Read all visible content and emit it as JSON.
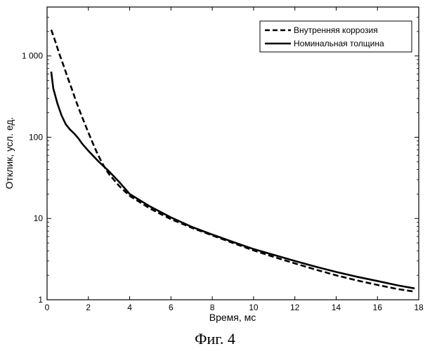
{
  "chart_data": {
    "type": "line",
    "title": "",
    "xlabel": "Время, мс",
    "ylabel": "Отклик, усл. ед.",
    "xlim": [
      0,
      18
    ],
    "ylim": [
      1,
      4000
    ],
    "yscale": "log",
    "grid": false,
    "legend_position": "top-right",
    "x_ticks": [
      0,
      2,
      4,
      6,
      8,
      10,
      12,
      14,
      16,
      18
    ],
    "x_tick_labels": [
      "0",
      "2",
      "4",
      "6",
      "8",
      "10",
      "12",
      "14",
      "16",
      "18"
    ],
    "y_ticks": [
      1,
      10,
      100,
      1000
    ],
    "y_tick_labels": [
      "1",
      "10",
      "100",
      "1 000"
    ],
    "series": [
      {
        "name": "Внутренняя коррозия",
        "style": "dashed",
        "color": "#000000",
        "x": [
          0.2,
          0.4,
          0.6,
          0.8,
          1.0,
          1.2,
          1.4,
          1.6,
          1.8,
          2.0,
          2.2,
          2.4,
          2.6,
          2.8,
          3.0,
          3.5,
          4.0,
          5.0,
          6.0,
          7.0,
          8.0,
          9.0,
          10.0,
          11.0,
          12.0,
          13.0,
          14.0,
          15.0,
          16.0,
          17.0,
          17.8
        ],
        "y": [
          2100,
          1500,
          1050,
          760,
          540,
          390,
          280,
          205,
          152,
          114,
          86,
          66,
          52,
          42,
          35,
          25,
          19,
          13.2,
          9.8,
          7.7,
          6.2,
          5.0,
          4.05,
          3.35,
          2.8,
          2.35,
          2.0,
          1.73,
          1.52,
          1.35,
          1.26
        ]
      },
      {
        "name": "Номинальная толщина",
        "style": "solid",
        "color": "#000000",
        "x": [
          0.2,
          0.3,
          0.5,
          0.7,
          0.9,
          1.1,
          1.3,
          1.5,
          1.7,
          2.0,
          2.5,
          3.0,
          3.5,
          4.0,
          5.0,
          6.0,
          7.0,
          8.0,
          9.0,
          10.0,
          11.0,
          12.0,
          13.0,
          14.0,
          15.0,
          16.0,
          17.0,
          17.8
        ],
        "y": [
          640,
          400,
          260,
          185,
          145,
          125,
          112,
          98,
          83,
          68,
          50,
          38,
          28,
          20,
          14,
          10.3,
          7.9,
          6.35,
          5.15,
          4.2,
          3.55,
          3.0,
          2.55,
          2.2,
          1.92,
          1.7,
          1.5,
          1.38
        ]
      }
    ]
  },
  "caption": "Фиг. 4"
}
